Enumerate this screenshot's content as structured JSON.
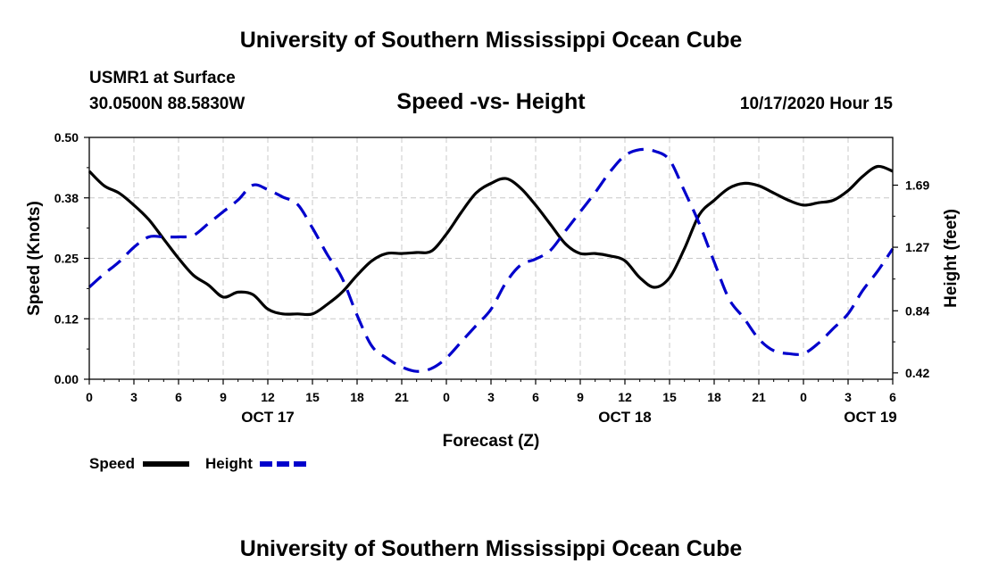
{
  "page": {
    "top_title": "University of Southern Mississippi Ocean Cube",
    "bottom_title": "University of Southern Mississippi Ocean Cube",
    "station": "USMR1 at Surface",
    "coords": "30.0500N 88.5830W",
    "run_time": "10/17/2020 Hour 15"
  },
  "chart_data": {
    "type": "line",
    "title": "Speed -vs- Height",
    "xlabel": "Forecast (Z)",
    "ylabel": "Speed (Knots)",
    "ylabel_right": "Height (feet)",
    "x_unit": "forecast hours from 00Z Oct 17",
    "xlim": [
      0,
      54
    ],
    "ylim": [
      0,
      0.5
    ],
    "ylim_right": [
      0.377,
      2.013
    ],
    "grid": true,
    "x_ticks": [
      {
        "x": 0,
        "label": "0"
      },
      {
        "x": 3,
        "label": "3"
      },
      {
        "x": 6,
        "label": "6"
      },
      {
        "x": 9,
        "label": "9"
      },
      {
        "x": 12,
        "label": "12"
      },
      {
        "x": 15,
        "label": "15"
      },
      {
        "x": 18,
        "label": "18"
      },
      {
        "x": 21,
        "label": "21"
      },
      {
        "x": 24,
        "label": "0"
      },
      {
        "x": 27,
        "label": "3"
      },
      {
        "x": 30,
        "label": "6"
      },
      {
        "x": 33,
        "label": "9"
      },
      {
        "x": 36,
        "label": "12"
      },
      {
        "x": 39,
        "label": "15"
      },
      {
        "x": 42,
        "label": "18"
      },
      {
        "x": 45,
        "label": "21"
      },
      {
        "x": 48,
        "label": "0"
      },
      {
        "x": 51,
        "label": "3"
      },
      {
        "x": 54,
        "label": "6"
      }
    ],
    "date_labels": [
      {
        "x": 12,
        "label": "OCT 17"
      },
      {
        "x": 36,
        "label": "OCT 18"
      },
      {
        "x": 52.5,
        "label": "OCT 19"
      }
    ],
    "y_ticks": [
      {
        "value": 0.0,
        "label": "0.00"
      },
      {
        "value": 0.125,
        "label": "0.12"
      },
      {
        "value": 0.25,
        "label": "0.25"
      },
      {
        "value": 0.375,
        "label": "0.38"
      },
      {
        "value": 0.5,
        "label": "0.50"
      }
    ],
    "y_ticks_right": [
      {
        "value": 0.42,
        "label": "0.42"
      },
      {
        "value": 0.84,
        "label": "0.84"
      },
      {
        "value": 1.27,
        "label": "1.27"
      },
      {
        "value": 1.69,
        "label": "1.69"
      }
    ],
    "series": [
      {
        "name": "Speed",
        "axis": "left",
        "color": "#000000",
        "style": "solid",
        "x": [
          0,
          1,
          2,
          3,
          4,
          5,
          6,
          7,
          8,
          9,
          10,
          11,
          12,
          13,
          14,
          15,
          16,
          17,
          18,
          19,
          20,
          21,
          22,
          23,
          24,
          25,
          26,
          27,
          28,
          29,
          30,
          31,
          32,
          33,
          34,
          35,
          36,
          37,
          38,
          39,
          40,
          41,
          42,
          43,
          44,
          45,
          46,
          47,
          48,
          49,
          50,
          51,
          52,
          53,
          54
        ],
        "values": [
          0.43,
          0.4,
          0.385,
          0.36,
          0.33,
          0.29,
          0.25,
          0.215,
          0.195,
          0.17,
          0.18,
          0.175,
          0.145,
          0.135,
          0.135,
          0.135,
          0.155,
          0.18,
          0.215,
          0.245,
          0.26,
          0.26,
          0.262,
          0.265,
          0.3,
          0.345,
          0.385,
          0.405,
          0.415,
          0.395,
          0.36,
          0.32,
          0.28,
          0.26,
          0.26,
          0.255,
          0.245,
          0.21,
          0.19,
          0.21,
          0.27,
          0.34,
          0.37,
          0.395,
          0.405,
          0.4,
          0.385,
          0.37,
          0.36,
          0.365,
          0.37,
          0.39,
          0.42,
          0.44,
          0.43
        ]
      },
      {
        "name": "Height",
        "axis": "right",
        "color": "#0000cc",
        "style": "dashed",
        "x": [
          0,
          1,
          2,
          3,
          4,
          5,
          6,
          7,
          8,
          9,
          10,
          11,
          12,
          13,
          14,
          15,
          16,
          17,
          18,
          19,
          20,
          21,
          22,
          23,
          24,
          25,
          26,
          27,
          28,
          29,
          30,
          31,
          32,
          33,
          34,
          35,
          36,
          37,
          38,
          39,
          40,
          41,
          42,
          43,
          44,
          45,
          46,
          47,
          48,
          49,
          50,
          51,
          52,
          53,
          54
        ],
        "values": [
          1.0,
          1.09,
          1.17,
          1.27,
          1.34,
          1.34,
          1.34,
          1.35,
          1.43,
          1.51,
          1.59,
          1.69,
          1.66,
          1.61,
          1.56,
          1.4,
          1.22,
          1.06,
          0.81,
          0.6,
          0.52,
          0.46,
          0.43,
          0.45,
          0.52,
          0.63,
          0.74,
          0.85,
          1.03,
          1.15,
          1.19,
          1.25,
          1.38,
          1.51,
          1.64,
          1.78,
          1.89,
          1.93,
          1.92,
          1.86,
          1.65,
          1.43,
          1.17,
          0.92,
          0.79,
          0.65,
          0.57,
          0.55,
          0.55,
          0.62,
          0.72,
          0.82,
          0.98,
          1.11,
          1.26
        ]
      }
    ],
    "legend": {
      "position": "bottom-left",
      "entries": [
        {
          "label": "Speed",
          "color": "#000000",
          "style": "solid"
        },
        {
          "label": "Height",
          "color": "#0000cc",
          "style": "dashed"
        }
      ]
    }
  }
}
